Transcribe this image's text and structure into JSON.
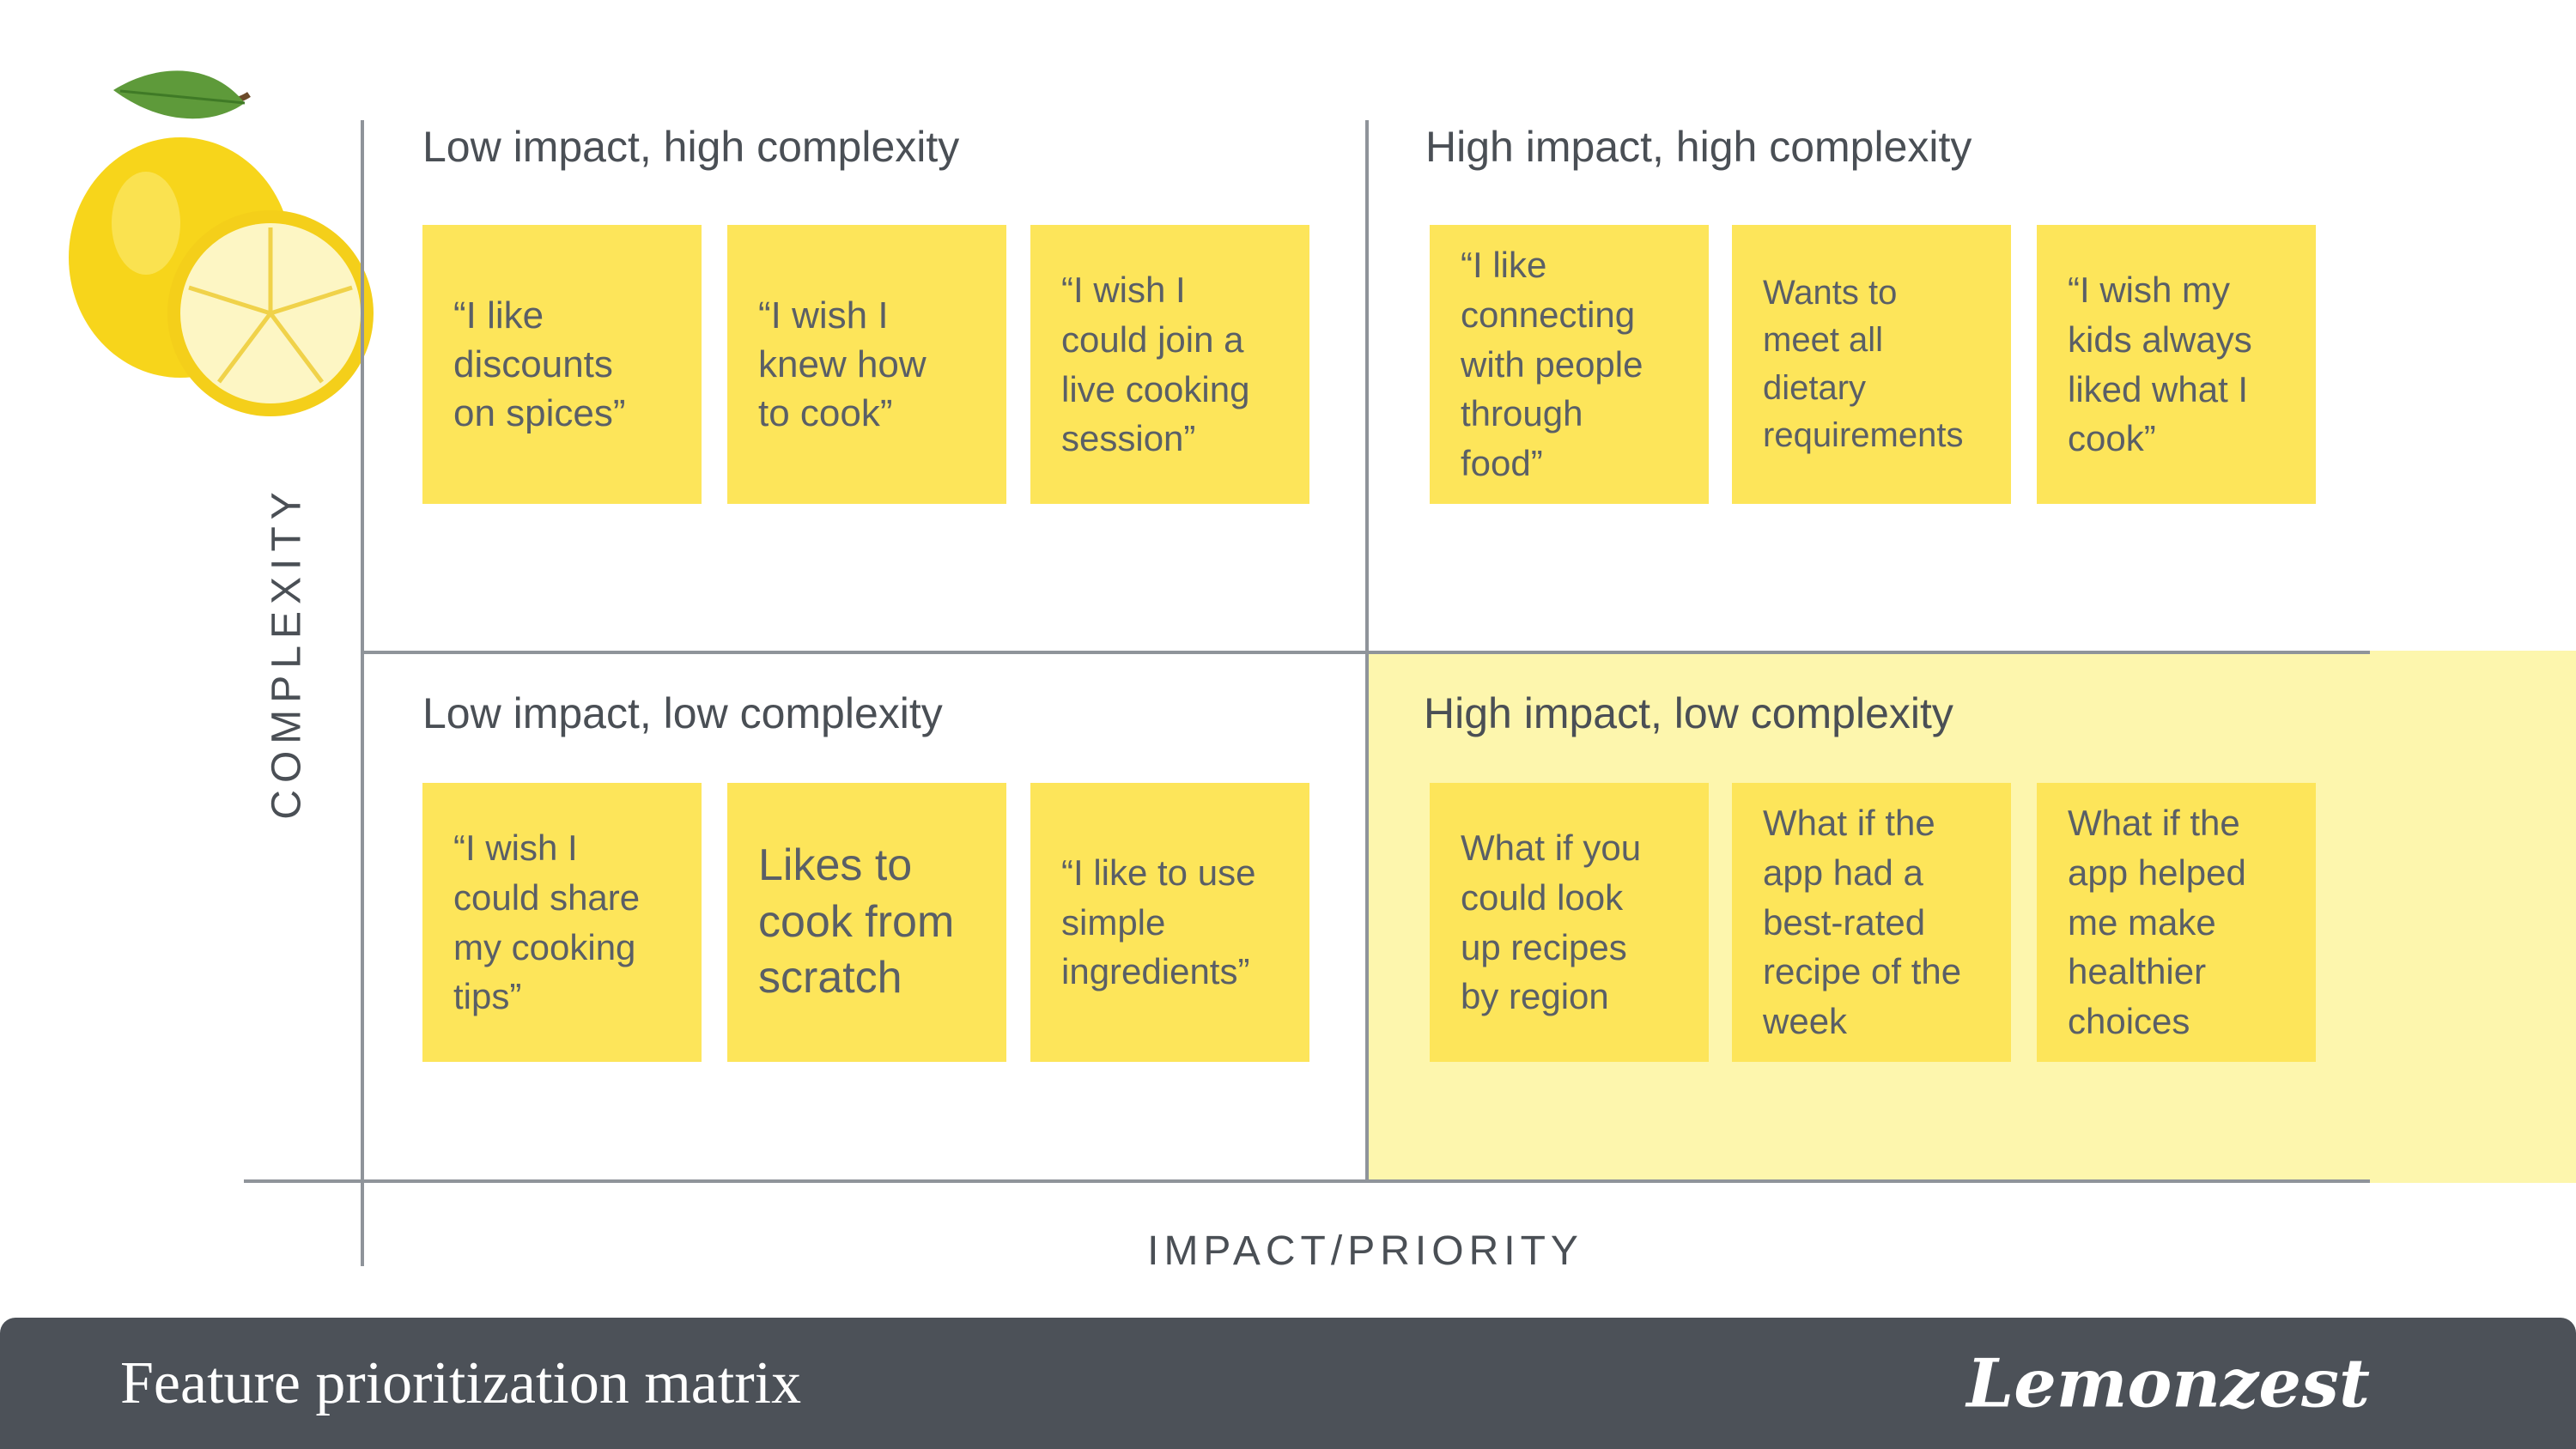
{
  "axes": {
    "y_label": "COMPLEXITY",
    "x_label": "IMPACT/PRIORITY"
  },
  "quadrants": [
    {
      "title": "Low impact, high complexity",
      "notes": [
        {
          "lines": [
            "“I like",
            "discounts",
            "on spices”"
          ]
        },
        {
          "lines": [
            "“I wish I",
            "knew how",
            "to cook”"
          ]
        },
        {
          "lines": [
            "“I wish I",
            "could join a",
            "live cooking",
            "session”"
          ]
        }
      ]
    },
    {
      "title": "High impact, high complexity",
      "notes": [
        {
          "lines": [
            "“I like",
            "connecting",
            "with people",
            "through",
            "food”"
          ]
        },
        {
          "lines": [
            "Wants to",
            "meet all",
            "dietary",
            "requirements"
          ]
        },
        {
          "lines": [
            "“I wish my",
            "kids always",
            "liked what I",
            "cook”"
          ]
        }
      ]
    },
    {
      "title": "Low impact, low complexity",
      "notes": [
        {
          "lines": [
            "“I wish I",
            "could share",
            "my cooking",
            "tips”"
          ]
        },
        {
          "lines": [
            "Likes to",
            "cook from",
            "scratch"
          ]
        },
        {
          "lines": [
            "“I like to use",
            "simple",
            "ingredients”"
          ]
        }
      ]
    },
    {
      "title": "High impact, low complexity",
      "highlight_color": "#fdf6ad",
      "notes": [
        {
          "lines": [
            "What if you",
            "could look",
            "up recipes",
            "by region"
          ]
        },
        {
          "lines": [
            "What if the",
            "app had a",
            "best-rated",
            "recipe of the",
            "week"
          ]
        },
        {
          "lines": [
            "What if the",
            "app helped",
            "me make",
            "healthier",
            "choices"
          ]
        }
      ]
    }
  ],
  "footer": {
    "title": "Feature prioritization matrix",
    "brand": "Lemonzest"
  },
  "colors": {
    "note": "#fde55a",
    "highlight": "#fdf6ad",
    "footer": "#4c5158",
    "axis": "#8f949a"
  },
  "icons": {
    "logo": "lemon-icon"
  }
}
